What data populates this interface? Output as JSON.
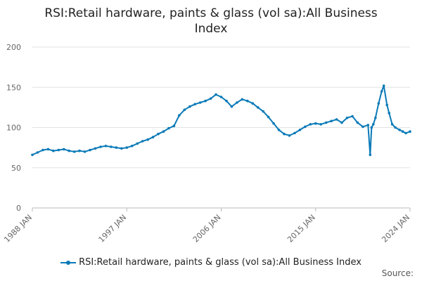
{
  "chart_data": {
    "type": "line",
    "title_lines": [
      "RSI:Retail hardware, paints & glass (vol sa):All Business",
      "Index"
    ],
    "ylim": [
      0,
      200
    ],
    "yticks": [
      0,
      50,
      100,
      150,
      200
    ],
    "xlim": [
      1988,
      2024
    ],
    "xticks": [
      "1988 JAN",
      "1997 JAN",
      "2006 JAN",
      "2015 JAN",
      "2024 JAN"
    ],
    "xtick_values": [
      1988,
      1997,
      2006,
      2015,
      2024
    ],
    "grid": true,
    "legend_position": "bottom",
    "series": [
      {
        "name": "RSI:Retail hardware, paints & glass (vol sa):All Business Index",
        "color": "#0a7ab8",
        "x": [
          1988.0,
          1988.5,
          1989.0,
          1989.5,
          1990.0,
          1990.5,
          1991.0,
          1991.5,
          1992.0,
          1992.5,
          1993.0,
          1993.5,
          1994.0,
          1994.5,
          1995.0,
          1995.5,
          1996.0,
          1996.5,
          1997.0,
          1997.5,
          1998.0,
          1998.5,
          1999.0,
          1999.5,
          2000.0,
          2000.5,
          2001.0,
          2001.5,
          2002.0,
          2002.5,
          2003.0,
          2003.5,
          2004.0,
          2004.5,
          2005.0,
          2005.5,
          2006.0,
          2006.5,
          2007.0,
          2007.5,
          2008.0,
          2008.5,
          2009.0,
          2009.5,
          2010.0,
          2010.5,
          2011.0,
          2011.5,
          2012.0,
          2012.5,
          2013.0,
          2013.5,
          2014.0,
          2014.5,
          2015.0,
          2015.5,
          2016.0,
          2016.5,
          2017.0,
          2017.5,
          2018.0,
          2018.5,
          2019.0,
          2019.5,
          2020.0,
          2020.2,
          2020.33,
          2020.5,
          2020.7,
          2021.0,
          2021.3,
          2021.5,
          2021.8,
          2022.0,
          2022.3,
          2022.6,
          2023.0,
          2023.3,
          2023.6,
          2024.0
        ],
        "values": [
          66,
          69,
          72,
          73,
          71,
          72,
          73,
          71,
          70,
          71,
          70,
          72,
          74,
          76,
          77,
          76,
          75,
          74,
          75,
          77,
          80,
          83,
          85,
          88,
          92,
          95,
          99,
          102,
          115,
          122,
          126,
          129,
          131,
          133,
          136,
          141,
          138,
          133,
          126,
          131,
          135,
          133,
          130,
          125,
          120,
          113,
          105,
          97,
          92,
          90,
          93,
          97,
          101,
          104,
          105,
          104,
          106,
          108,
          110,
          106,
          112,
          114,
          106,
          101,
          103,
          66,
          100,
          104,
          112,
          130,
          145,
          152,
          128,
          118,
          104,
          100,
          97,
          95,
          93,
          95
        ]
      }
    ]
  },
  "credit": "Source:"
}
